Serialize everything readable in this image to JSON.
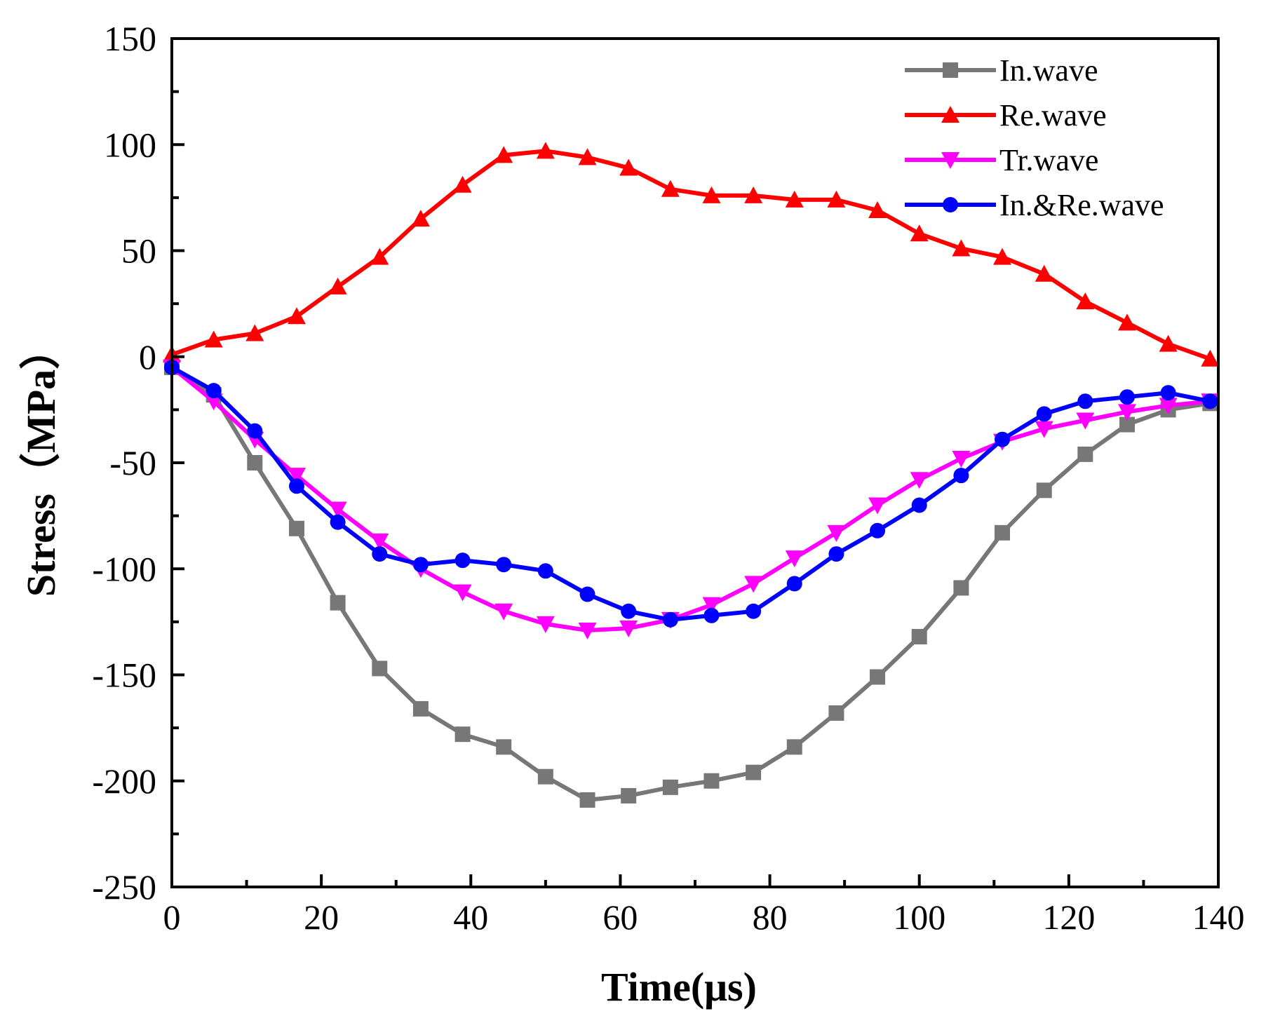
{
  "chart_data": {
    "type": "line",
    "title": "",
    "xlabel": "Time(μs)",
    "ylabel": "Stress（MPa）",
    "xlim": [
      0,
      140
    ],
    "ylim": [
      -250,
      150
    ],
    "x_ticks": [
      0,
      20,
      40,
      60,
      80,
      100,
      120,
      140
    ],
    "x_tick_labels": [
      "0",
      "20",
      "40",
      "60",
      "80",
      "100",
      "120",
      "140"
    ],
    "y_ticks": [
      150,
      100,
      50,
      0,
      -50,
      -100,
      -150,
      -200,
      -250
    ],
    "y_tick_labels": [
      "150",
      "100",
      "50",
      "0",
      "-50",
      "-100",
      "-150",
      "-200",
      "-250"
    ],
    "grid": false,
    "legend_position": "top-right",
    "series": [
      {
        "name": "In.wave",
        "color": "#777777",
        "marker": "square",
        "x": [
          0,
          5.6,
          11.1,
          16.7,
          22.2,
          27.8,
          33.3,
          38.9,
          44.4,
          50,
          55.6,
          61.1,
          66.7,
          72.2,
          77.8,
          83.3,
          88.9,
          94.4,
          100,
          105.6,
          111.1,
          116.7,
          122.2,
          127.8,
          133.3,
          138.9
        ],
        "y": [
          -5,
          -18,
          -50,
          -81,
          -116,
          -147,
          -166,
          -178,
          -184,
          -198,
          -209,
          -207,
          -203,
          -200,
          -196,
          -184,
          -168,
          -151,
          -132,
          -109,
          -83,
          -63,
          -46,
          -32,
          -25,
          -22
        ]
      },
      {
        "name": "Re.wave",
        "color": "#ff0000",
        "marker": "triangle-up",
        "x": [
          0,
          5.6,
          11.1,
          16.7,
          22.2,
          27.8,
          33.3,
          38.9,
          44.4,
          50,
          55.6,
          61.1,
          66.7,
          72.2,
          77.8,
          83.3,
          88.9,
          94.4,
          100,
          105.6,
          111.1,
          116.7,
          122.2,
          127.8,
          133.3,
          138.9
        ],
        "y": [
          1,
          8,
          11,
          19,
          33,
          47,
          65,
          81,
          95,
          97,
          94,
          89,
          79,
          76,
          76,
          74,
          74,
          69,
          58,
          51,
          47,
          39,
          26,
          16,
          6,
          -1
        ]
      },
      {
        "name": "Tr.wave",
        "color": "#ff00ff",
        "marker": "triangle-down",
        "x": [
          0,
          5.6,
          11.1,
          16.7,
          22.2,
          27.8,
          33.3,
          38.9,
          44.4,
          50,
          55.6,
          61.1,
          66.7,
          72.2,
          77.8,
          83.3,
          88.9,
          94.4,
          100,
          105.6,
          111.1,
          116.7,
          122.2,
          127.8,
          133.3,
          138.9
        ],
        "y": [
          -5,
          -21,
          -39,
          -56,
          -72,
          -87,
          -100,
          -111,
          -120,
          -126,
          -129,
          -128,
          -124,
          -117,
          -107,
          -95,
          -83,
          -70,
          -58,
          -48,
          -40,
          -34,
          -30,
          -26,
          -23,
          -21
        ]
      },
      {
        "name": "In.&Re.wave",
        "color": "#0000ff",
        "marker": "circle",
        "x": [
          0,
          5.6,
          11.1,
          16.7,
          22.2,
          27.8,
          33.3,
          38.9,
          44.4,
          50,
          55.6,
          61.1,
          66.7,
          72.2,
          77.8,
          83.3,
          88.9,
          94.4,
          100,
          105.6,
          111.1,
          116.7,
          122.2,
          127.8,
          133.3,
          138.9
        ],
        "y": [
          -5,
          -16,
          -35,
          -61,
          -78,
          -93,
          -98,
          -96,
          -98,
          -101,
          -112,
          -120,
          -124,
          -122,
          -120,
          -107,
          -93,
          -82,
          -70,
          -56,
          -39,
          -27,
          -21,
          -19,
          -17,
          -21
        ]
      }
    ]
  }
}
